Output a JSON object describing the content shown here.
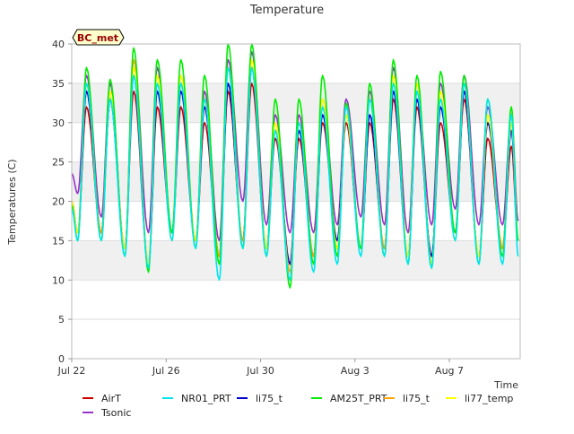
{
  "chart_data": {
    "type": "line",
    "title": "Temperature",
    "xlabel": "Time",
    "ylabel": "Temperatures (C)",
    "site_label": "BC_met",
    "xlim": [
      "2023-07-22",
      "2023-08-10"
    ],
    "ylim": [
      0,
      40
    ],
    "yticks": [
      0,
      5,
      10,
      15,
      20,
      25,
      30,
      35,
      40
    ],
    "xticks": [
      {
        "date": "2023-07-22",
        "label": "Jul 22"
      },
      {
        "date": "2023-07-26",
        "label": "Jul 26"
      },
      {
        "date": "2023-07-30",
        "label": "Jul 30"
      },
      {
        "date": "2023-08-03",
        "label": "Aug 3"
      },
      {
        "date": "2023-08-07",
        "label": "Aug 7"
      }
    ],
    "grid": "horizontal",
    "background_bands": true,
    "legend_placement": "bottom",
    "daily_extremes": {
      "dates": [
        "2023-07-22",
        "2023-07-23",
        "2023-07-24",
        "2023-07-25",
        "2023-07-26",
        "2023-07-27",
        "2023-07-28",
        "2023-07-29",
        "2023-07-30",
        "2023-07-31",
        "2023-08-01",
        "2023-08-02",
        "2023-08-03",
        "2023-08-04",
        "2023-08-05",
        "2023-08-06",
        "2023-08-07",
        "2023-08-08",
        "2023-08-09"
      ],
      "min_times": [
        "2023-07-22T06:00",
        "2023-07-23T06:00",
        "2023-07-24T06:00",
        "2023-07-25T06:00",
        "2023-07-26T06:00",
        "2023-07-27T06:00",
        "2023-07-28T06:00",
        "2023-07-29T06:00",
        "2023-07-30T06:00",
        "2023-07-31T06:00",
        "2023-08-01T06:00",
        "2023-08-02T06:00",
        "2023-08-03T06:00",
        "2023-08-04T06:00",
        "2023-08-05T06:00",
        "2023-08-06T06:00",
        "2023-08-07T06:00",
        "2023-08-08T06:00",
        "2023-08-09T06:00"
      ],
      "max_times": [
        "2023-07-22T15:00",
        "2023-07-23T15:00",
        "2023-07-24T15:00",
        "2023-07-25T15:00",
        "2023-07-26T15:00",
        "2023-07-27T15:00",
        "2023-07-28T15:00",
        "2023-07-29T15:00",
        "2023-07-30T15:00",
        "2023-07-31T15:00",
        "2023-08-01T15:00",
        "2023-08-02T15:00",
        "2023-08-03T15:00",
        "2023-08-04T15:00",
        "2023-08-05T15:00",
        "2023-08-06T15:00",
        "2023-08-07T15:00",
        "2023-08-08T15:00",
        "2023-08-09T15:00"
      ],
      "start": {
        "time": "2023-07-22T00:00",
        "values": {
          "AirT": 20.0,
          "NR01_PRT": 19.0,
          "li75_t": 20.0,
          "AM25T_PRT": 19.5,
          "li75_t_2": 20.0,
          "li77_temp": 20.0,
          "Tsonic": 23.5
        }
      },
      "end": {
        "time": "2023-08-09T22:00",
        "values": {
          "AirT": 15.0,
          "NR01_PRT": 13.0,
          "li75_t": 15.0,
          "AM25T_PRT": 15.0,
          "li75_t_2": 15.0,
          "li77_temp": 15.5,
          "Tsonic": 17.5
        }
      }
    },
    "series": [
      {
        "name": "AirT",
        "color": "#cc0000",
        "mins": [
          16,
          16,
          14,
          12,
          16,
          15,
          13,
          15,
          14,
          12,
          13,
          15,
          14,
          14,
          13,
          13,
          16,
          13,
          14
        ],
        "maxs": [
          32,
          33,
          34,
          32,
          32,
          30,
          34,
          35,
          28,
          28,
          30,
          30,
          30,
          33,
          32,
          30,
          33,
          28,
          27
        ]
      },
      {
        "name": "NR01_PRT",
        "color": "#00e5ee",
        "mins": [
          15,
          15,
          13,
          11.5,
          15,
          14,
          10,
          14,
          13,
          10,
          11,
          12,
          13,
          13,
          12,
          11.5,
          15,
          12,
          12
        ],
        "maxs": [
          35,
          33,
          36,
          35,
          35,
          33,
          37,
          37,
          29,
          30,
          32,
          32,
          33,
          35,
          34,
          33,
          35,
          33,
          31
        ]
      },
      {
        "name": "li75_t",
        "color": "#0000cc",
        "mins": [
          16,
          16,
          14,
          12,
          16,
          15,
          13,
          15,
          14,
          12,
          13,
          15,
          14,
          14,
          13,
          13,
          16,
          13,
          14
        ],
        "maxs": [
          34,
          33,
          36,
          34,
          34,
          32,
          35,
          37,
          29,
          29,
          31,
          31,
          31,
          34,
          33,
          32,
          34,
          30,
          29
        ]
      },
      {
        "name": "AM25T_PRT",
        "color": "#00ee00",
        "mins": [
          15,
          15,
          13,
          11,
          16,
          14,
          12,
          14,
          13,
          9,
          12,
          13,
          14,
          13,
          12,
          11.5,
          16,
          12,
          13
        ],
        "maxs": [
          37,
          35.5,
          39.5,
          38,
          38,
          36,
          40,
          40,
          33,
          33,
          36,
          32.5,
          35,
          38,
          36,
          36.5,
          36,
          33,
          32
        ]
      },
      {
        "name": "li75_t",
        "color": "#ffa500",
        "mins": [
          16,
          16,
          14,
          12,
          16,
          15,
          13,
          15,
          14,
          11,
          13,
          14,
          14,
          14,
          13,
          12,
          16,
          13,
          14
        ],
        "maxs": [
          35,
          34,
          38,
          36,
          36,
          33,
          37,
          38,
          30,
          30,
          33,
          31,
          33,
          36,
          35,
          34,
          35,
          31,
          30
        ]
      },
      {
        "name": "li77_temp",
        "color": "#ffff00",
        "mins": [
          16,
          15,
          14,
          12,
          15,
          15,
          12,
          14,
          14,
          10,
          12,
          14,
          14,
          13,
          13,
          12,
          15,
          13,
          13
        ],
        "maxs": [
          35,
          34,
          37,
          36,
          36,
          33,
          37,
          38,
          30,
          30,
          33,
          31,
          33,
          36,
          35,
          34,
          35,
          31,
          30
        ]
      },
      {
        "name": "Tsonic",
        "color": "#9932cc",
        "mins": [
          21,
          18,
          14,
          16,
          16,
          15,
          15,
          20,
          17,
          16,
          16,
          17,
          18,
          17,
          16,
          17,
          19,
          17,
          17
        ],
        "maxs": [
          36,
          35,
          38,
          37,
          35,
          34,
          38,
          39,
          31,
          31,
          33,
          33,
          34,
          37,
          34,
          35,
          36,
          32,
          31
        ]
      }
    ],
    "draw_order": [
      "Tsonic",
      "AirT",
      "li75_t",
      "li75_t",
      "li77_temp",
      "AM25T_PRT",
      "NR01_PRT"
    ]
  }
}
